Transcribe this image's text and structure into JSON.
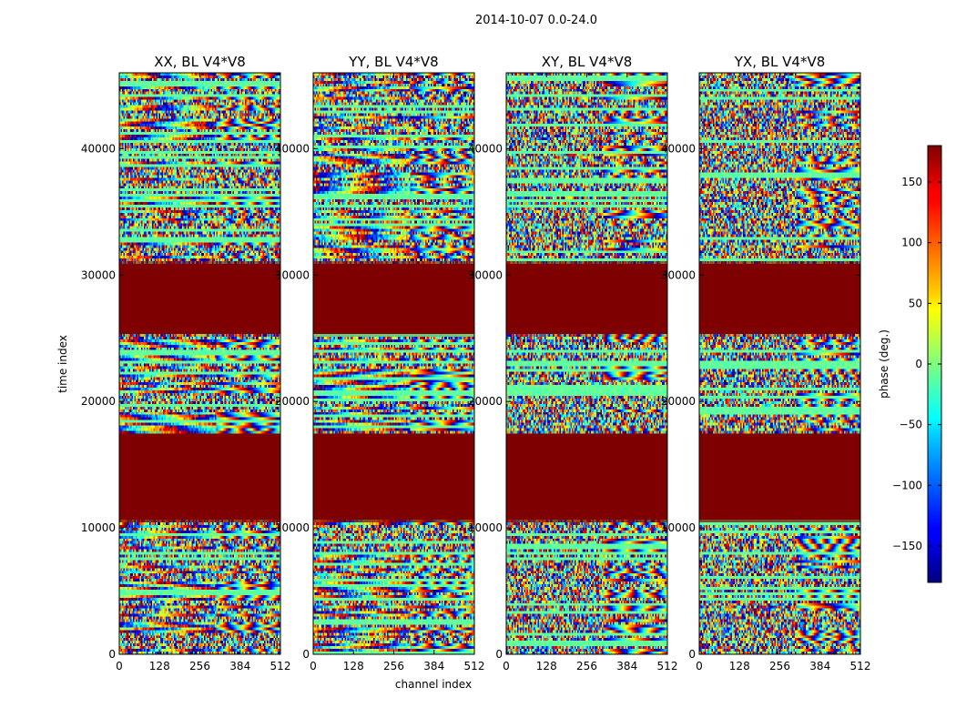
{
  "figure": {
    "suptitle": "2014-10-07 0.0-24.0",
    "xlabel": "channel index",
    "ylabel": "time index",
    "colorbar_label": "phase (deg.)",
    "colorbar_ticks": [
      150,
      100,
      50,
      0,
      -50,
      -100,
      -150
    ],
    "colorbar_range": [
      -180,
      180
    ],
    "colormap": "jet",
    "masked_color": "#7f0000"
  },
  "chart_data": [
    {
      "type": "heatmap",
      "title": "XX, BL V4*V8",
      "x_range": [
        0,
        512
      ],
      "y_range": [
        0,
        46000
      ],
      "x_ticks": [
        0,
        128,
        256,
        384,
        512
      ],
      "y_ticks": [
        0,
        10000,
        20000,
        30000,
        40000
      ],
      "masked_bands": [
        [
          10500,
          17500
        ],
        [
          25300,
          31000
        ]
      ],
      "value": "phase (deg.)"
    },
    {
      "type": "heatmap",
      "title": "YY, BL V4*V8",
      "x_range": [
        0,
        512
      ],
      "y_range": [
        0,
        46000
      ],
      "x_ticks": [
        0,
        128,
        256,
        384,
        512
      ],
      "y_ticks": [
        0,
        10000,
        20000,
        30000,
        40000
      ],
      "masked_bands": [
        [
          10500,
          17500
        ],
        [
          25300,
          31000
        ]
      ],
      "value": "phase (deg.)"
    },
    {
      "type": "heatmap",
      "title": "XY, BL V4*V8",
      "x_range": [
        0,
        512
      ],
      "y_range": [
        0,
        46000
      ],
      "x_ticks": [
        0,
        128,
        256,
        384,
        512
      ],
      "y_ticks": [
        0,
        10000,
        20000,
        30000,
        40000
      ],
      "masked_bands": [
        [
          10500,
          17500
        ],
        [
          25300,
          31000
        ]
      ],
      "value": "phase (deg.)"
    },
    {
      "type": "heatmap",
      "title": "YX, BL V4*V8",
      "x_range": [
        0,
        512
      ],
      "y_range": [
        0,
        46000
      ],
      "x_ticks": [
        0,
        128,
        256,
        384,
        512
      ],
      "y_ticks": [
        0,
        10000,
        20000,
        30000,
        40000
      ],
      "masked_bands": [
        [
          10500,
          17500
        ],
        [
          25300,
          31000
        ]
      ],
      "value": "phase (deg.)"
    }
  ]
}
